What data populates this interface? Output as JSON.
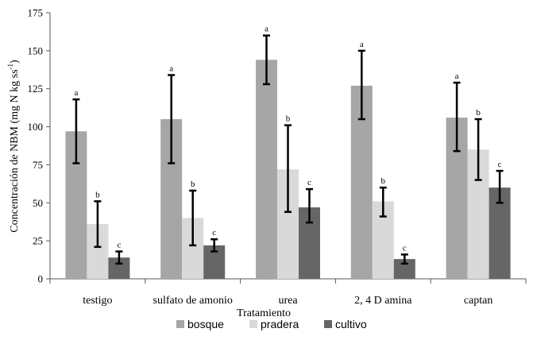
{
  "chart_data": {
    "type": "bar",
    "title": "",
    "xlabel": "Tratamiento",
    "ylabel_main": "Concentración de NBM  (mg N kg ss",
    "ylabel_sup": "-1",
    "ylabel_close": ")",
    "ylim": [
      0,
      175
    ],
    "yticks": [
      0,
      25,
      50,
      75,
      100,
      125,
      150,
      175
    ],
    "grid": false,
    "legend_position": "bottom",
    "categories": [
      "testigo",
      "sulfato de amonio",
      "urea",
      "2, 4 D amina",
      "captan"
    ],
    "series": [
      {
        "name": "bosque",
        "color": "#a6a6a6",
        "values": [
          97,
          105,
          144,
          127,
          106
        ],
        "err_low": [
          76,
          76,
          128,
          105,
          84
        ],
        "err_high": [
          118,
          134,
          160,
          150,
          129
        ],
        "letters": [
          "a",
          "a",
          "a",
          "a",
          "a"
        ]
      },
      {
        "name": "pradera",
        "color": "#d9d9d9",
        "values": [
          36,
          40,
          72,
          51,
          85
        ],
        "err_low": [
          21,
          22,
          44,
          41,
          65
        ],
        "err_high": [
          51,
          58,
          101,
          60,
          105
        ],
        "letters": [
          "b",
          "b",
          "b",
          "b",
          "b"
        ]
      },
      {
        "name": "cultivo",
        "color": "#666666",
        "values": [
          14,
          22,
          47,
          13,
          60
        ],
        "err_low": [
          10,
          18,
          37,
          10,
          50
        ],
        "err_high": [
          18,
          26,
          59,
          16,
          71
        ],
        "letters": [
          "c",
          "c",
          "c",
          "c",
          "c"
        ]
      }
    ]
  }
}
